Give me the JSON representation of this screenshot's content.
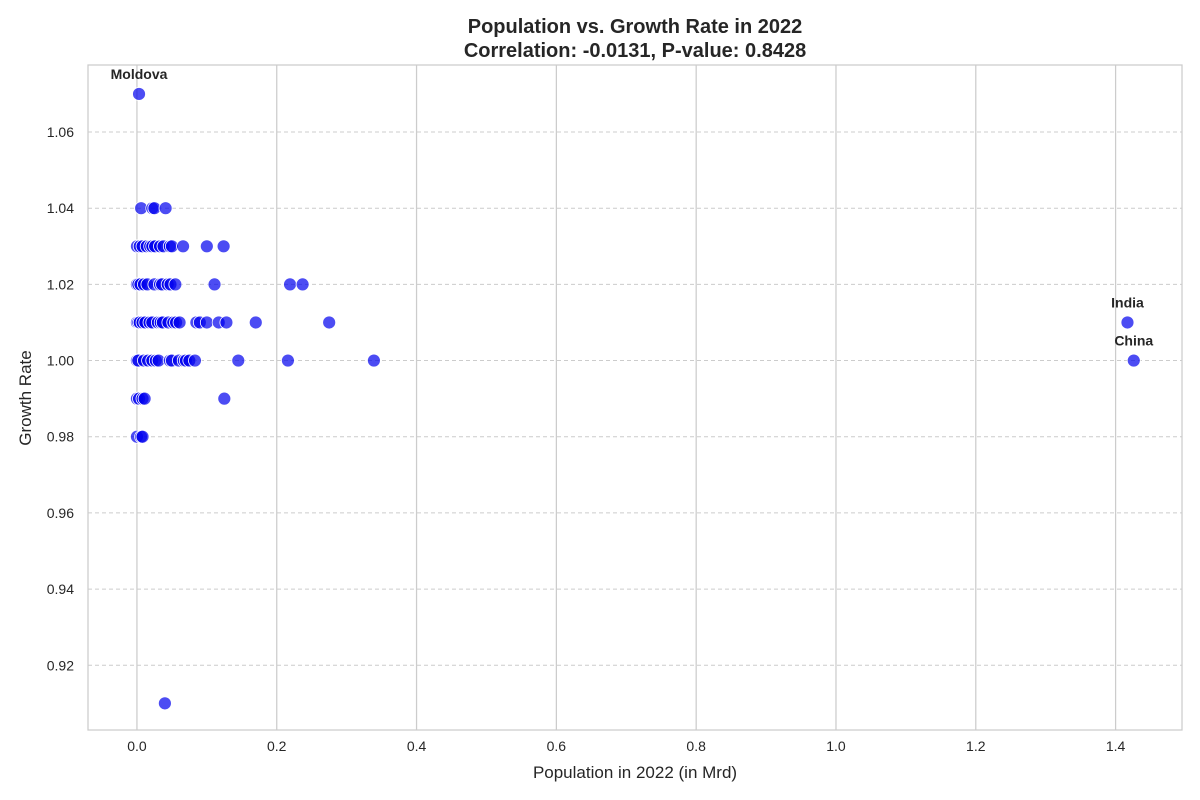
{
  "chart_data": {
    "type": "scatter",
    "title": "Population vs. Growth Rate in 2022",
    "subtitle": "Correlation: -0.0131, P-value: 0.8428",
    "xlabel": "Population in 2022 (in Mrd)",
    "ylabel": "Growth Rate",
    "xlim": [
      -0.07,
      1.495
    ],
    "ylim": [
      0.903,
      1.0776
    ],
    "xticks": [
      0.0,
      0.2,
      0.4,
      0.6,
      0.8,
      1.0,
      1.2,
      1.4
    ],
    "xtick_labels": [
      "0.0",
      "0.2",
      "0.4",
      "0.6",
      "0.8",
      "1.0",
      "1.2",
      "1.4"
    ],
    "yticks": [
      0.92,
      0.94,
      0.96,
      0.98,
      1.0,
      1.02,
      1.04,
      1.06
    ],
    "ytick_labels": [
      "0.92",
      "0.94",
      "0.96",
      "0.98",
      "1.00",
      "1.02",
      "1.04",
      "1.06"
    ],
    "grid": {
      "x": true,
      "y": true,
      "y_style": "dashed"
    },
    "marker_color": "#0000ee",
    "points": [
      {
        "x": 0.003,
        "y": 1.07,
        "label": "Moldova"
      },
      {
        "x": 1.417,
        "y": 1.01,
        "label": "India"
      },
      {
        "x": 1.426,
        "y": 1.0,
        "label": "China"
      },
      {
        "x": 0.006,
        "y": 1.04
      },
      {
        "x": 0.022,
        "y": 1.04
      },
      {
        "x": 0.025,
        "y": 1.04
      },
      {
        "x": 0.041,
        "y": 1.04
      },
      {
        "x": 0.0,
        "y": 1.03
      },
      {
        "x": 0.004,
        "y": 1.03
      },
      {
        "x": 0.008,
        "y": 1.03
      },
      {
        "x": 0.014,
        "y": 1.03
      },
      {
        "x": 0.019,
        "y": 1.03
      },
      {
        "x": 0.022,
        "y": 1.03
      },
      {
        "x": 0.026,
        "y": 1.03
      },
      {
        "x": 0.033,
        "y": 1.03
      },
      {
        "x": 0.038,
        "y": 1.03
      },
      {
        "x": 0.047,
        "y": 1.03
      },
      {
        "x": 0.05,
        "y": 1.03
      },
      {
        "x": 0.066,
        "y": 1.03
      },
      {
        "x": 0.1,
        "y": 1.03
      },
      {
        "x": 0.124,
        "y": 1.03
      },
      {
        "x": 0.0,
        "y": 1.02
      },
      {
        "x": 0.002,
        "y": 1.02
      },
      {
        "x": 0.005,
        "y": 1.02
      },
      {
        "x": 0.01,
        "y": 1.02
      },
      {
        "x": 0.015,
        "y": 1.02
      },
      {
        "x": 0.025,
        "y": 1.02
      },
      {
        "x": 0.033,
        "y": 1.02
      },
      {
        "x": 0.036,
        "y": 1.02
      },
      {
        "x": 0.044,
        "y": 1.02
      },
      {
        "x": 0.048,
        "y": 1.02
      },
      {
        "x": 0.055,
        "y": 1.02
      },
      {
        "x": 0.111,
        "y": 1.02
      },
      {
        "x": 0.219,
        "y": 1.02
      },
      {
        "x": 0.237,
        "y": 1.02
      },
      {
        "x": 0.0,
        "y": 1.01
      },
      {
        "x": 0.002,
        "y": 1.01
      },
      {
        "x": 0.004,
        "y": 1.01
      },
      {
        "x": 0.008,
        "y": 1.01
      },
      {
        "x": 0.012,
        "y": 1.01
      },
      {
        "x": 0.018,
        "y": 1.01
      },
      {
        "x": 0.022,
        "y": 1.01
      },
      {
        "x": 0.03,
        "y": 1.01
      },
      {
        "x": 0.034,
        "y": 1.01
      },
      {
        "x": 0.037,
        "y": 1.01
      },
      {
        "x": 0.045,
        "y": 1.01
      },
      {
        "x": 0.052,
        "y": 1.01
      },
      {
        "x": 0.056,
        "y": 1.01
      },
      {
        "x": 0.061,
        "y": 1.01
      },
      {
        "x": 0.085,
        "y": 1.01
      },
      {
        "x": 0.09,
        "y": 1.01
      },
      {
        "x": 0.1,
        "y": 1.01
      },
      {
        "x": 0.117,
        "y": 1.01
      },
      {
        "x": 0.128,
        "y": 1.01
      },
      {
        "x": 0.17,
        "y": 1.01
      },
      {
        "x": 0.275,
        "y": 1.01
      },
      {
        "x": 0.0,
        "y": 1.0
      },
      {
        "x": 0.002,
        "y": 1.0
      },
      {
        "x": 0.01,
        "y": 1.0
      },
      {
        "x": 0.016,
        "y": 1.0
      },
      {
        "x": 0.022,
        "y": 1.0
      },
      {
        "x": 0.027,
        "y": 1.0
      },
      {
        "x": 0.031,
        "y": 1.0
      },
      {
        "x": 0.047,
        "y": 1.0
      },
      {
        "x": 0.05,
        "y": 1.0
      },
      {
        "x": 0.06,
        "y": 1.0
      },
      {
        "x": 0.067,
        "y": 1.0
      },
      {
        "x": 0.07,
        "y": 1.0
      },
      {
        "x": 0.075,
        "y": 1.0
      },
      {
        "x": 0.083,
        "y": 1.0
      },
      {
        "x": 0.145,
        "y": 1.0
      },
      {
        "x": 0.216,
        "y": 1.0
      },
      {
        "x": 0.339,
        "y": 1.0
      },
      {
        "x": 0.0,
        "y": 0.99
      },
      {
        "x": 0.003,
        "y": 0.99
      },
      {
        "x": 0.008,
        "y": 0.99
      },
      {
        "x": 0.011,
        "y": 0.99
      },
      {
        "x": 0.125,
        "y": 0.99
      },
      {
        "x": 0.0,
        "y": 0.98
      },
      {
        "x": 0.006,
        "y": 0.98
      },
      {
        "x": 0.008,
        "y": 0.98
      },
      {
        "x": 0.04,
        "y": 0.91
      }
    ]
  }
}
